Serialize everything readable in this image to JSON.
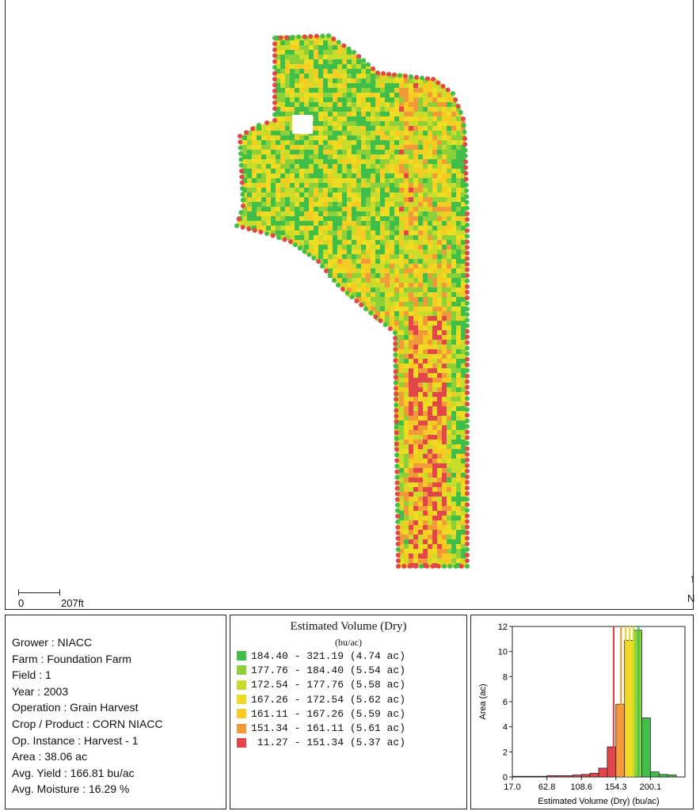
{
  "map": {
    "scale_zero": "0",
    "scale_distance": "207ft",
    "north_label": "N",
    "north_arrow": "↑",
    "colors": {
      "high": "#3fbf4a",
      "mid_high": "#8cd13a",
      "mid": "#c9dc2a",
      "mid_low": "#eedc23",
      "low": "#f7cc22",
      "lower": "#f29a3a",
      "lowest": "#e2454a"
    }
  },
  "info": {
    "items": [
      "Grower : NIACC",
      "Farm  : Foundation Farm",
      "Field : 1",
      "Year : 2003",
      "Operation  : Grain Harvest",
      "Crop / Product : CORN NIACC",
      "Op. Instance : Harvest - 1",
      "Area : 38.06 ac",
      "Avg. Yield : 166.81 bu/ac",
      "Avg. Moisture : 16.29 %"
    ]
  },
  "legend": {
    "title": "Estimated Volume (Dry)",
    "units": "(bu/ac)",
    "rows": [
      {
        "text": "184.40 - 321.19 (4.74 ac)",
        "color": "#3fbf4a"
      },
      {
        "text": "177.76 - 184.40 (5.54 ac)",
        "color": "#8cd13a"
      },
      {
        "text": "172.54 - 177.76 (5.58 ac)",
        "color": "#c9dc2a"
      },
      {
        "text": "167.26 - 172.54 (5.62 ac)",
        "color": "#eedc23"
      },
      {
        "text": "161.11 - 167.26 (5.59 ac)",
        "color": "#f7cc22"
      },
      {
        "text": "151.34 - 161.11 (5.61 ac)",
        "color": "#f29a3a"
      },
      {
        "text": " 11.27 - 151.34 (5.37 ac)",
        "color": "#e2454a"
      }
    ]
  },
  "chart_data": {
    "type": "bar",
    "xlabel": "Estimated Volume (Dry) (bu/ac)",
    "ylabel": "Area (ac)",
    "x_ticks": [
      "17.0",
      "62.8",
      "108.6",
      "154.3",
      "200.1"
    ],
    "y_ticks": [
      "0",
      "2",
      "4",
      "6",
      "8",
      "10",
      "12"
    ],
    "xlim": [
      17.0,
      245.9
    ],
    "ylim": [
      0,
      12
    ],
    "bins": [
      {
        "x0": 17.0,
        "x1": 28.4,
        "value": 0.05
      },
      {
        "x0": 28.4,
        "x1": 39.9,
        "value": 0.05
      },
      {
        "x0": 39.9,
        "x1": 51.3,
        "value": 0.05
      },
      {
        "x0": 51.3,
        "x1": 62.8,
        "value": 0.05
      },
      {
        "x0": 62.8,
        "x1": 74.2,
        "value": 0.1
      },
      {
        "x0": 74.2,
        "x1": 85.7,
        "value": 0.1
      },
      {
        "x0": 85.7,
        "x1": 97.1,
        "value": 0.1
      },
      {
        "x0": 97.1,
        "x1": 108.6,
        "value": 0.15
      },
      {
        "x0": 108.6,
        "x1": 120.0,
        "value": 0.2
      },
      {
        "x0": 120.0,
        "x1": 131.5,
        "value": 0.3
      },
      {
        "x0": 131.5,
        "x1": 142.9,
        "value": 0.7
      },
      {
        "x0": 142.9,
        "x1": 154.3,
        "value": 2.4
      },
      {
        "x0": 154.3,
        "x1": 165.8,
        "value": 5.8
      },
      {
        "x0": 165.8,
        "x1": 177.2,
        "value": 10.9
      },
      {
        "x0": 177.2,
        "x1": 188.7,
        "value": 11.7
      },
      {
        "x0": 188.7,
        "x1": 200.1,
        "value": 4.7
      },
      {
        "x0": 200.1,
        "x1": 211.6,
        "value": 0.4
      },
      {
        "x0": 211.6,
        "x1": 223.0,
        "value": 0.2
      },
      {
        "x0": 223.0,
        "x1": 234.5,
        "value": 0.15
      }
    ],
    "class_breaks": [
      {
        "value": 151.34,
        "color": "#e2454a"
      },
      {
        "value": 161.11,
        "color": "#f29a3a"
      },
      {
        "value": 167.26,
        "color": "#f7cc22"
      },
      {
        "value": 172.54,
        "color": "#eedc23"
      },
      {
        "value": 177.76,
        "color": "#c9dc2a"
      },
      {
        "value": 184.4,
        "color": "#3fbf4a"
      }
    ],
    "grid": false
  }
}
